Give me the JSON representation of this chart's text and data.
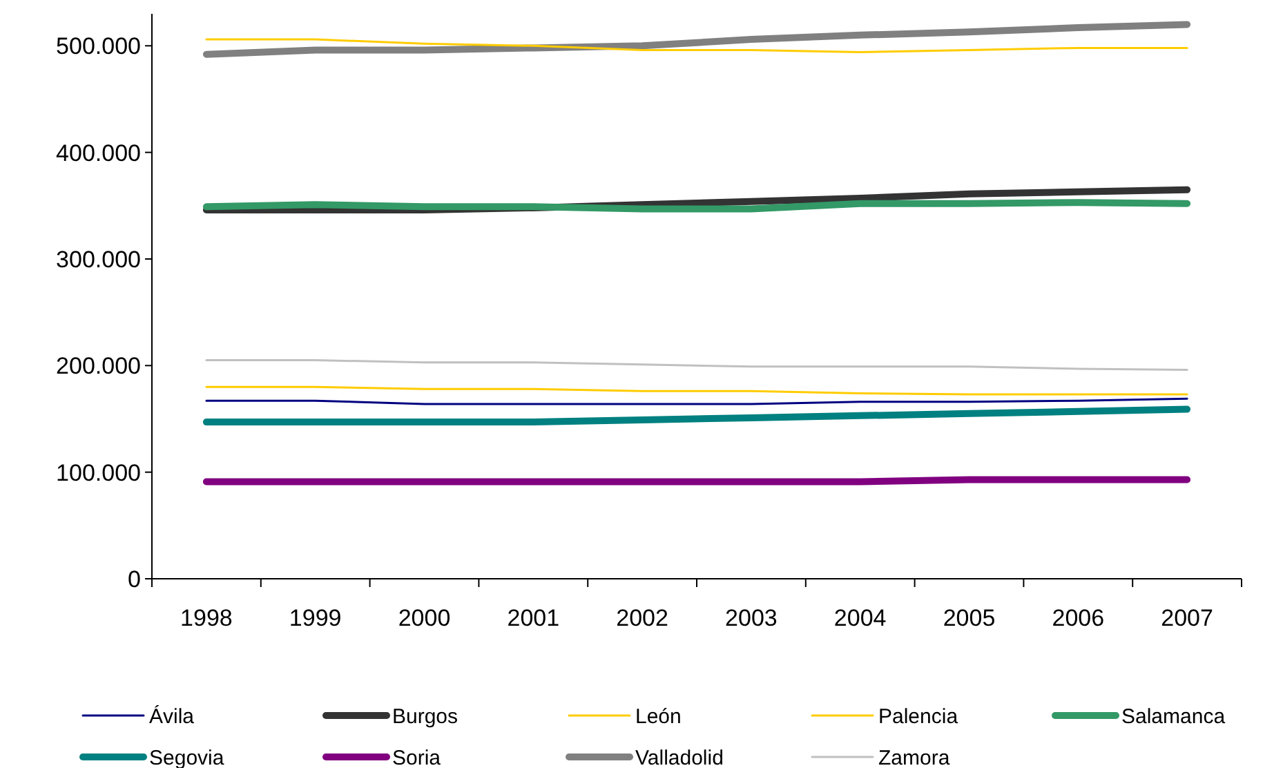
{
  "chart_data": {
    "type": "line",
    "categories": [
      "1998",
      "1999",
      "2000",
      "2001",
      "2002",
      "2003",
      "2004",
      "2005",
      "2006",
      "2007"
    ],
    "ylim": [
      0,
      530000
    ],
    "yticks": [
      {
        "value": 0,
        "label": "0"
      },
      {
        "value": 100000,
        "label": "100.000"
      },
      {
        "value": 200000,
        "label": "200.000"
      },
      {
        "value": 300000,
        "label": "300.000"
      },
      {
        "value": 400000,
        "label": "400.000"
      },
      {
        "value": 500000,
        "label": "500.000"
      }
    ],
    "grid": false,
    "legend": "bottom",
    "marker": "none",
    "line_style": "solid",
    "series": [
      {
        "name": "Ávila",
        "color": "#000080",
        "values": [
          167000,
          167000,
          164000,
          164000,
          164000,
          164000,
          166000,
          166000,
          167000,
          169000
        ]
      },
      {
        "name": "Burgos",
        "color": "#333333",
        "values": [
          346000,
          346000,
          346000,
          348000,
          351000,
          354000,
          357000,
          361000,
          363000,
          365000
        ]
      },
      {
        "name": "León",
        "color": "#ffcc00",
        "values": [
          506000,
          506000,
          502000,
          500000,
          496000,
          496000,
          494000,
          496000,
          498000,
          498000
        ]
      },
      {
        "name": "Palencia",
        "color": "#ffcc00",
        "values": [
          180000,
          180000,
          178000,
          178000,
          176000,
          176000,
          174000,
          173000,
          173000,
          173000
        ]
      },
      {
        "name": "Salamanca",
        "color": "#339966",
        "values": [
          349000,
          351000,
          349000,
          349000,
          347000,
          347000,
          352000,
          352000,
          353000,
          352000
        ]
      },
      {
        "name": "Segovia",
        "color": "#008080",
        "values": [
          147000,
          147000,
          147000,
          147000,
          149000,
          151000,
          153000,
          155000,
          157000,
          159000
        ]
      },
      {
        "name": "Soria",
        "color": "#800080",
        "values": [
          91000,
          91000,
          91000,
          91000,
          91000,
          91000,
          91000,
          93000,
          93000,
          93000
        ]
      },
      {
        "name": "Valladolid",
        "color": "#808080",
        "values": [
          492000,
          496000,
          496000,
          498000,
          500000,
          506000,
          510000,
          513000,
          517000,
          520000
        ]
      },
      {
        "name": "Zamora",
        "color": "#c0c0c0",
        "values": [
          205000,
          205000,
          203000,
          203000,
          201000,
          199000,
          199000,
          199000,
          197000,
          196000
        ]
      }
    ]
  }
}
